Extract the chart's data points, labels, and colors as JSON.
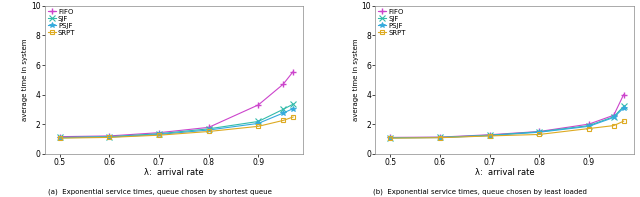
{
  "x": [
    0.5,
    0.6,
    0.7,
    0.8,
    0.9,
    0.95,
    0.97
  ],
  "left": {
    "FIFO": [
      1.15,
      1.2,
      1.42,
      1.78,
      3.3,
      4.7,
      5.55
    ],
    "SJF": [
      1.1,
      1.15,
      1.35,
      1.68,
      2.18,
      3.0,
      3.35
    ],
    "PSJF": [
      1.08,
      1.12,
      1.3,
      1.6,
      2.05,
      2.75,
      3.05
    ],
    "SRPT": [
      1.05,
      1.1,
      1.25,
      1.5,
      1.85,
      2.25,
      2.48
    ]
  },
  "right": {
    "FIFO": [
      1.1,
      1.12,
      1.28,
      1.5,
      2.0,
      2.6,
      4.0
    ],
    "SJF": [
      1.08,
      1.1,
      1.25,
      1.48,
      1.9,
      2.5,
      3.2
    ],
    "PSJF": [
      1.07,
      1.09,
      1.22,
      1.45,
      1.85,
      2.45,
      3.1
    ],
    "SRPT": [
      1.05,
      1.08,
      1.2,
      1.3,
      1.7,
      1.9,
      2.2
    ]
  },
  "colors": {
    "FIFO": "#cc44cc",
    "SJF": "#33bbaa",
    "PSJF": "#33aadd",
    "SRPT": "#ddaa22"
  },
  "markers": {
    "FIFO": "+",
    "SJF": "x",
    "PSJF": "*",
    "SRPT": "s"
  },
  "ylabel": "average time in system",
  "xlabel": "λ:  arrival rate",
  "ylim": [
    0,
    10
  ],
  "yticks": [
    0,
    2,
    4,
    6,
    8,
    10
  ],
  "xticks": [
    0.5,
    0.6,
    0.7,
    0.8,
    0.9
  ],
  "caption_left": "(a)  Exponential service times, queue chosen by shortest queue",
  "caption_right": "(b)  Exponential service times, queue chosen by least loaded",
  "background": "#ffffff"
}
